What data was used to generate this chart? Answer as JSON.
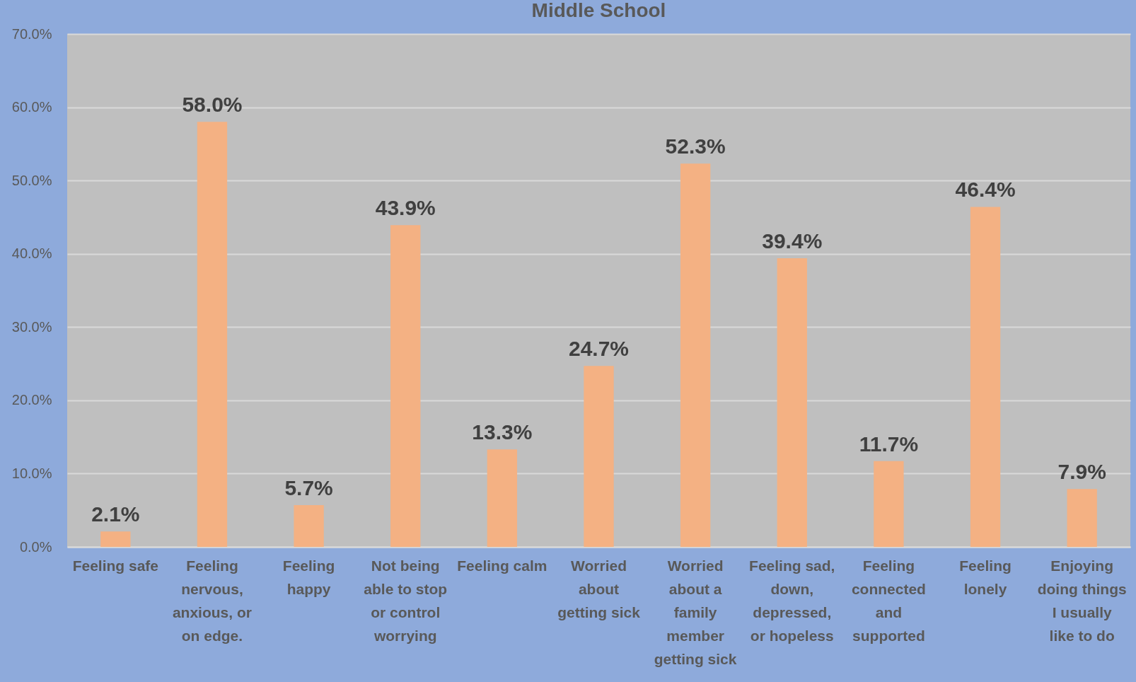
{
  "chart_data": {
    "type": "bar",
    "title": "Middle School",
    "categories": [
      "Feeling safe",
      "Feeling nervous, anxious, or on edge.",
      "Feeling happy",
      "Not being able to stop or control worrying",
      "Feeling calm",
      "Worried about getting sick",
      "Worried about a family member getting sick",
      "Feeling sad, down, depressed, or hopeless",
      "Feeling connected and supported",
      "Feeling lonely",
      "Enjoying doing things I usually like to do"
    ],
    "values": [
      2.1,
      58.0,
      5.7,
      43.9,
      13.3,
      24.7,
      52.3,
      39.4,
      11.7,
      46.4,
      7.9
    ],
    "value_labels": [
      "2.1%",
      "58.0%",
      "5.7%",
      "43.9%",
      "13.3%",
      "24.7%",
      "52.3%",
      "39.4%",
      "11.7%",
      "46.4%",
      "7.9%"
    ],
    "color": "#f4b183",
    "ylim": [
      0,
      70
    ],
    "yticks": [
      {
        "value": 0,
        "label": "0.0%"
      },
      {
        "value": 10,
        "label": "10.0%"
      },
      {
        "value": 20,
        "label": "20.0%"
      },
      {
        "value": 30,
        "label": "30.0%"
      },
      {
        "value": 40,
        "label": "40.0%"
      },
      {
        "value": 50,
        "label": "50.0%"
      },
      {
        "value": 60,
        "label": "60.0%"
      },
      {
        "value": 70,
        "label": "70.0%"
      }
    ],
    "grid": "y"
  }
}
